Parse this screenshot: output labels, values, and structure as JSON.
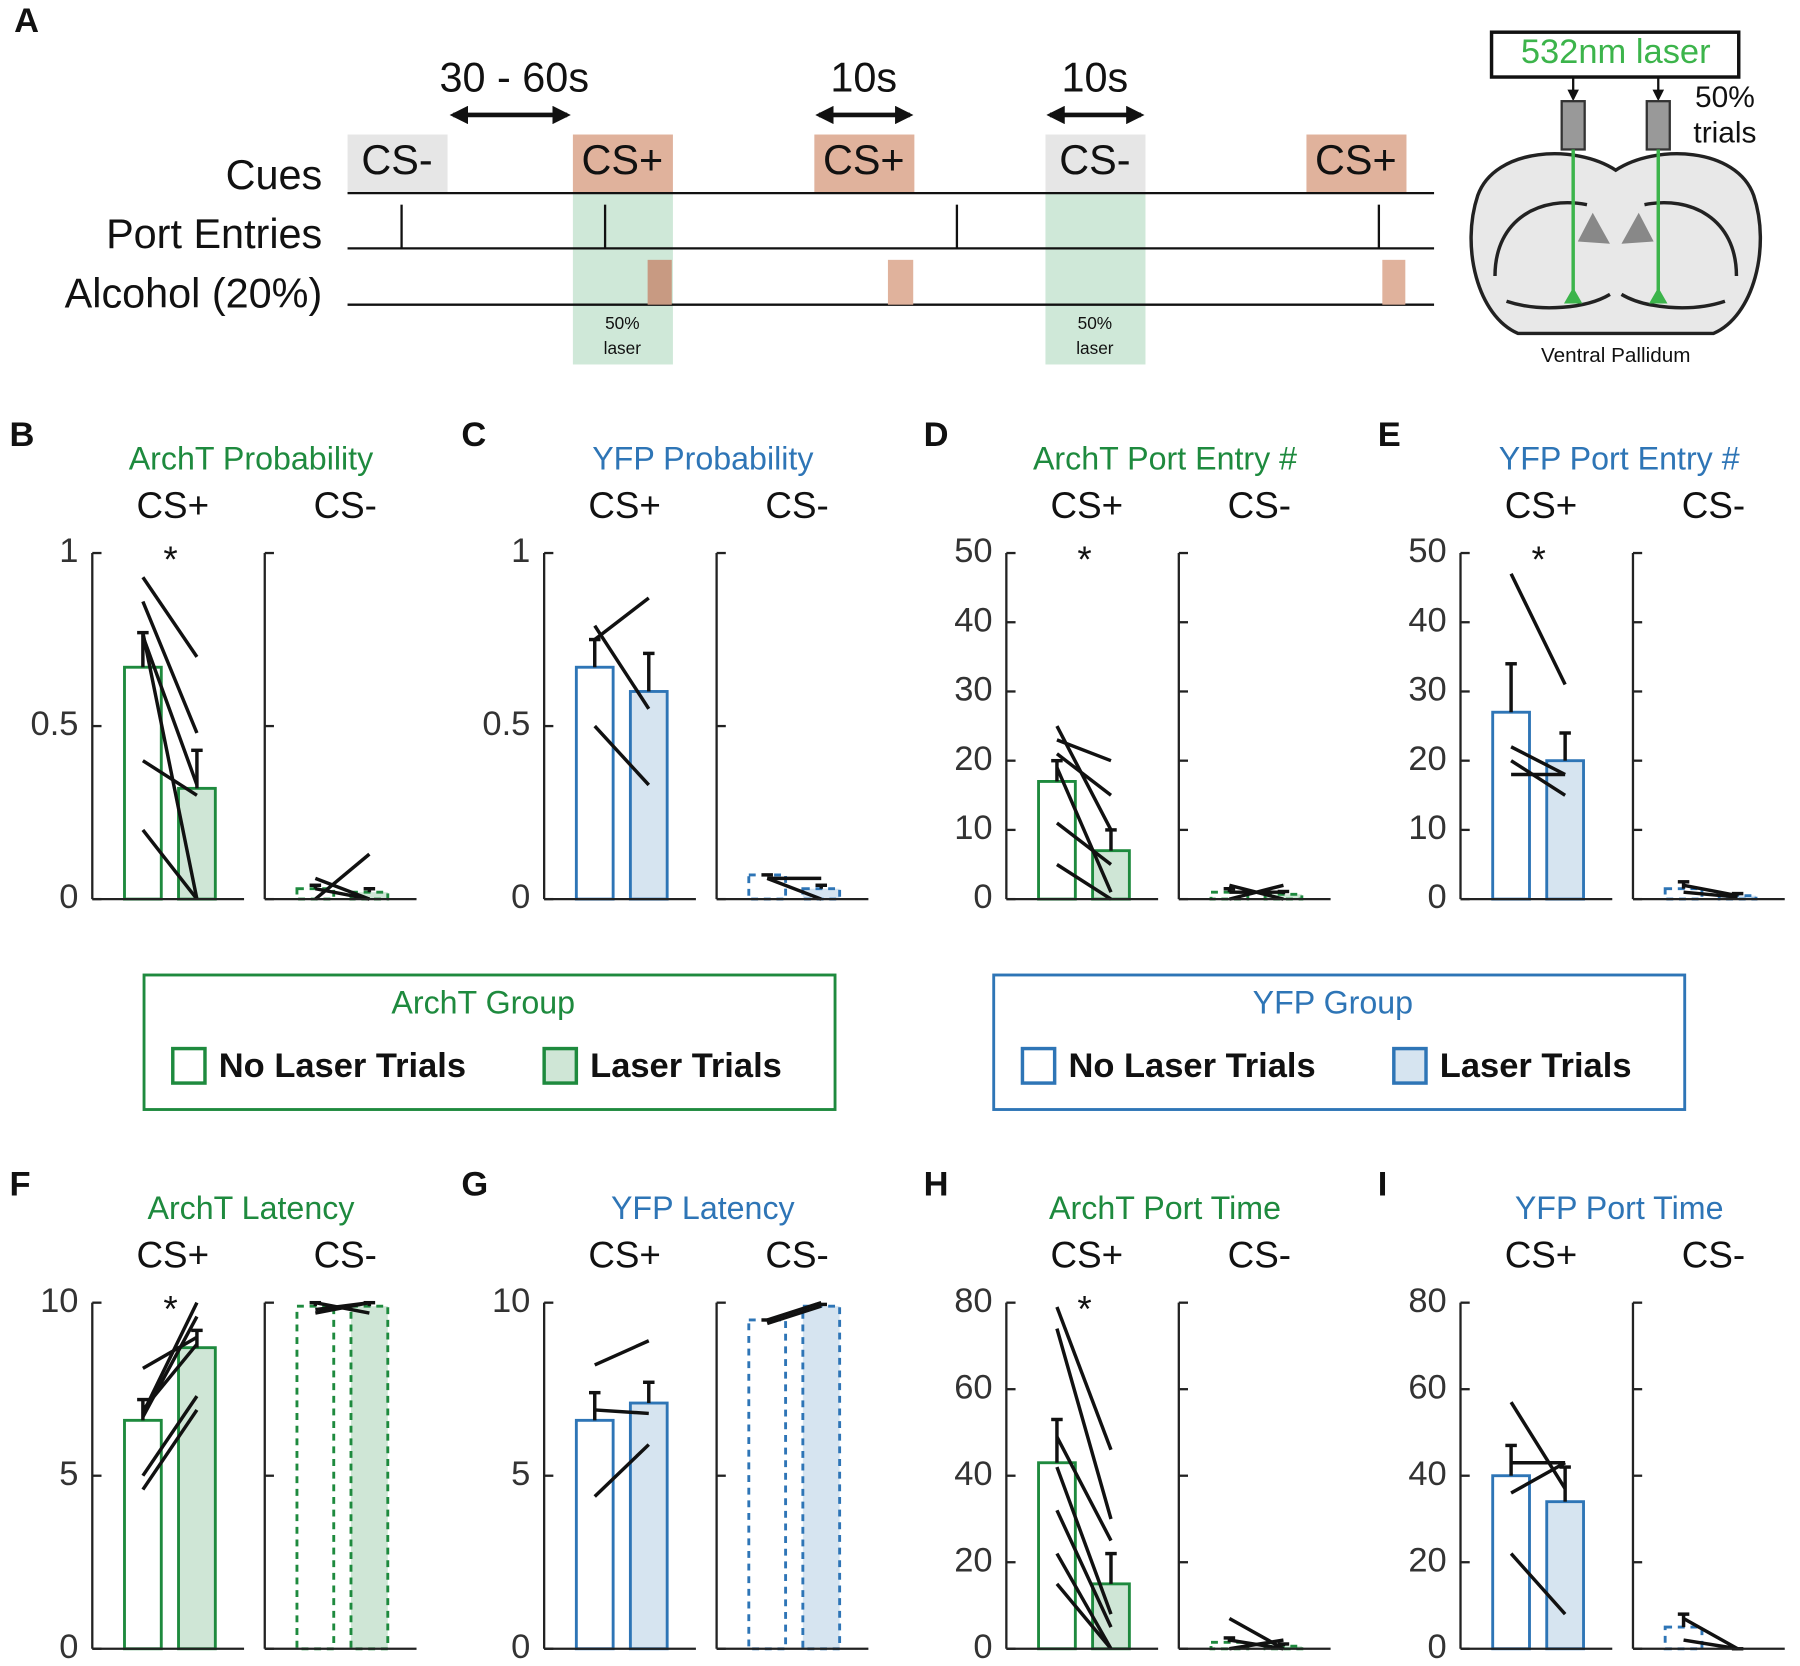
{
  "diagram": {
    "panel": "A",
    "rows": [
      "Cues",
      "Port Entries",
      "Alcohol (20%)"
    ],
    "intervals": [
      "30 - 60s",
      "10s",
      "10s"
    ],
    "cues": [
      "CS-",
      "CS+",
      "CS+",
      "CS-",
      "CS+"
    ],
    "laser_notes": [
      [
        "50%",
        "laser"
      ],
      [
        "50%",
        "laser"
      ]
    ],
    "laser": "532nm laser",
    "trials_note": [
      "50%",
      "trials"
    ],
    "region": "Ventral Pallidum"
  },
  "legends": [
    {
      "title": "ArchT Group",
      "color": "#1e8a3e",
      "entries": [
        "No Laser Trials",
        "Laser Trials"
      ],
      "fills": [
        "#ffffff",
        "#cfe6d6"
      ]
    },
    {
      "title": "YFP Group",
      "color": "#2e75b6",
      "entries": [
        "No Laser Trials",
        "Laser Trials"
      ],
      "fills": [
        "#ffffff",
        "#d6e4f0"
      ]
    }
  ],
  "chart_data": [
    {
      "type": "bar",
      "panel": "B",
      "title": "ArchT Probability",
      "color": "#1e8a3e",
      "fill": "#cfe6d6",
      "ylim": [
        0,
        1
      ],
      "yticks": [
        0,
        0.5,
        1
      ],
      "groups": [
        {
          "name": "CS+",
          "annotation": "*",
          "values": [
            0.67,
            0.32
          ],
          "errors": [
            0.1,
            0.11
          ],
          "subjects": [
            [
              0.93,
              0.7
            ],
            [
              0.86,
              0.48
            ],
            [
              0.77,
              0.0
            ],
            [
              0.76,
              0.33
            ],
            [
              0.4,
              0.3
            ],
            [
              0.2,
              0.0
            ]
          ]
        },
        {
          "name": "CS-",
          "dashed": true,
          "values": [
            0.03,
            0.02
          ],
          "errors": [
            0.01,
            0.01
          ],
          "subjects": [
            [
              0.0,
              0.13
            ],
            [
              0.06,
              0.0
            ],
            [
              0.03,
              0.0
            ]
          ]
        }
      ]
    },
    {
      "type": "bar",
      "panel": "C",
      "title": "YFP Probability",
      "color": "#2e75b6",
      "fill": "#d6e4f0",
      "ylim": [
        0,
        1
      ],
      "yticks": [
        0,
        0.5,
        1
      ],
      "groups": [
        {
          "name": "CS+",
          "values": [
            0.67,
            0.6
          ],
          "errors": [
            0.08,
            0.11
          ],
          "subjects": [
            [
              0.75,
              0.87
            ],
            [
              0.79,
              0.55
            ],
            [
              0.5,
              0.33
            ]
          ]
        },
        {
          "name": "CS-",
          "dashed": true,
          "values": [
            0.07,
            0.03
          ],
          "errors": [
            0.0,
            0.01
          ],
          "subjects": [
            [
              0.06,
              0.06
            ],
            [
              0.06,
              0.0
            ]
          ]
        }
      ]
    },
    {
      "type": "bar",
      "panel": "D",
      "title": "ArchT Port Entry #",
      "color": "#1e8a3e",
      "fill": "#cfe6d6",
      "ylim": [
        0,
        50
      ],
      "yticks": [
        0,
        10,
        20,
        30,
        40,
        50
      ],
      "groups": [
        {
          "name": "CS+",
          "annotation": "*",
          "values": [
            17,
            7
          ],
          "errors": [
            3,
            3
          ],
          "subjects": [
            [
              25,
              10
            ],
            [
              23,
              20
            ],
            [
              21,
              15
            ],
            [
              19,
              1
            ],
            [
              11,
              5
            ],
            [
              5,
              0
            ]
          ]
        },
        {
          "name": "CS-",
          "dashed": true,
          "values": [
            1,
            0.7
          ],
          "errors": [
            0.5,
            0.4
          ],
          "subjects": [
            [
              2,
              0
            ],
            [
              0,
              2
            ],
            [
              1,
              1
            ]
          ]
        }
      ]
    },
    {
      "type": "bar",
      "panel": "E",
      "title": "YFP Port Entry #",
      "color": "#2e75b6",
      "fill": "#d6e4f0",
      "ylim": [
        0,
        50
      ],
      "yticks": [
        0,
        10,
        20,
        30,
        40,
        50
      ],
      "groups": [
        {
          "name": "CS+",
          "annotation": "*",
          "values": [
            27,
            20
          ],
          "errors": [
            7,
            4
          ],
          "subjects": [
            [
              47,
              31
            ],
            [
              22,
              18
            ],
            [
              20,
              15
            ],
            [
              18,
              18
            ]
          ]
        },
        {
          "name": "CS-",
          "dashed": true,
          "values": [
            1.5,
            0.5
          ],
          "errors": [
            1,
            0.3
          ],
          "subjects": [
            [
              2,
              0.5
            ],
            [
              1,
              0.3
            ]
          ]
        }
      ]
    },
    {
      "type": "bar",
      "panel": "F",
      "title": "ArchT Latency",
      "color": "#1e8a3e",
      "fill": "#cfe6d6",
      "ylim": [
        0,
        10
      ],
      "yticks": [
        0,
        5,
        10
      ],
      "groups": [
        {
          "name": "CS+",
          "annotation": "*",
          "values": [
            6.6,
            8.7
          ],
          "errors": [
            0.6,
            0.5
          ],
          "subjects": [
            [
              8.1,
              9.0
            ],
            [
              6.8,
              10.0
            ],
            [
              6.7,
              9.6
            ],
            [
              5.0,
              7.3
            ],
            [
              4.6,
              6.9
            ],
            [
              6.9,
              8.8
            ]
          ]
        },
        {
          "name": "CS-",
          "dashed": true,
          "values": [
            9.9,
            9.9
          ],
          "errors": [
            0.1,
            0.1
          ],
          "subjects": [
            [
              9.8,
              10
            ],
            [
              9.7,
              10
            ],
            [
              10,
              9.7
            ]
          ]
        }
      ]
    },
    {
      "type": "bar",
      "panel": "G",
      "title": "YFP Latency",
      "color": "#2e75b6",
      "fill": "#d6e4f0",
      "ylim": [
        0,
        10
      ],
      "yticks": [
        0,
        5,
        10
      ],
      "groups": [
        {
          "name": "CS+",
          "values": [
            6.6,
            7.1
          ],
          "errors": [
            0.8,
            0.6
          ],
          "subjects": [
            [
              8.2,
              8.9
            ],
            [
              6.9,
              6.8
            ],
            [
              4.4,
              5.9
            ]
          ]
        },
        {
          "name": "CS-",
          "dashed": true,
          "values": [
            9.5,
            9.9
          ],
          "errors": [
            0,
            0.05
          ],
          "subjects": [
            [
              9.4,
              9.9
            ],
            [
              9.5,
              10
            ]
          ]
        }
      ]
    },
    {
      "type": "bar",
      "panel": "H",
      "title": "ArchT Port Time",
      "color": "#1e8a3e",
      "fill": "#cfe6d6",
      "ylim": [
        0,
        80
      ],
      "yticks": [
        0,
        20,
        40,
        60,
        80
      ],
      "groups": [
        {
          "name": "CS+",
          "annotation": "*",
          "values": [
            43,
            15
          ],
          "errors": [
            10,
            7
          ],
          "subjects": [
            [
              79,
              46
            ],
            [
              74,
              30
            ],
            [
              49,
              25
            ],
            [
              42,
              8
            ],
            [
              32,
              5
            ],
            [
              22,
              0
            ],
            [
              15,
              0
            ]
          ]
        },
        {
          "name": "CS-",
          "dashed": true,
          "values": [
            1.5,
            0.6
          ],
          "errors": [
            1,
            0.5
          ],
          "subjects": [
            [
              7,
              0
            ],
            [
              0,
              2
            ],
            [
              2,
              0
            ]
          ]
        }
      ]
    },
    {
      "type": "bar",
      "panel": "I",
      "title": "YFP Port Time",
      "color": "#2e75b6",
      "fill": "#d6e4f0",
      "ylim": [
        0,
        80
      ],
      "yticks": [
        0,
        20,
        40,
        60,
        80
      ],
      "groups": [
        {
          "name": "CS+",
          "values": [
            40,
            34
          ],
          "errors": [
            7,
            8
          ],
          "subjects": [
            [
              57,
              37
            ],
            [
              43,
              43
            ],
            [
              36,
              43
            ],
            [
              22,
              8
            ]
          ]
        },
        {
          "name": "CS-",
          "dashed": true,
          "values": [
            5,
            0
          ],
          "errors": [
            3,
            0
          ],
          "subjects": [
            [
              7,
              0
            ],
            [
              2,
              0
            ]
          ]
        }
      ]
    }
  ]
}
